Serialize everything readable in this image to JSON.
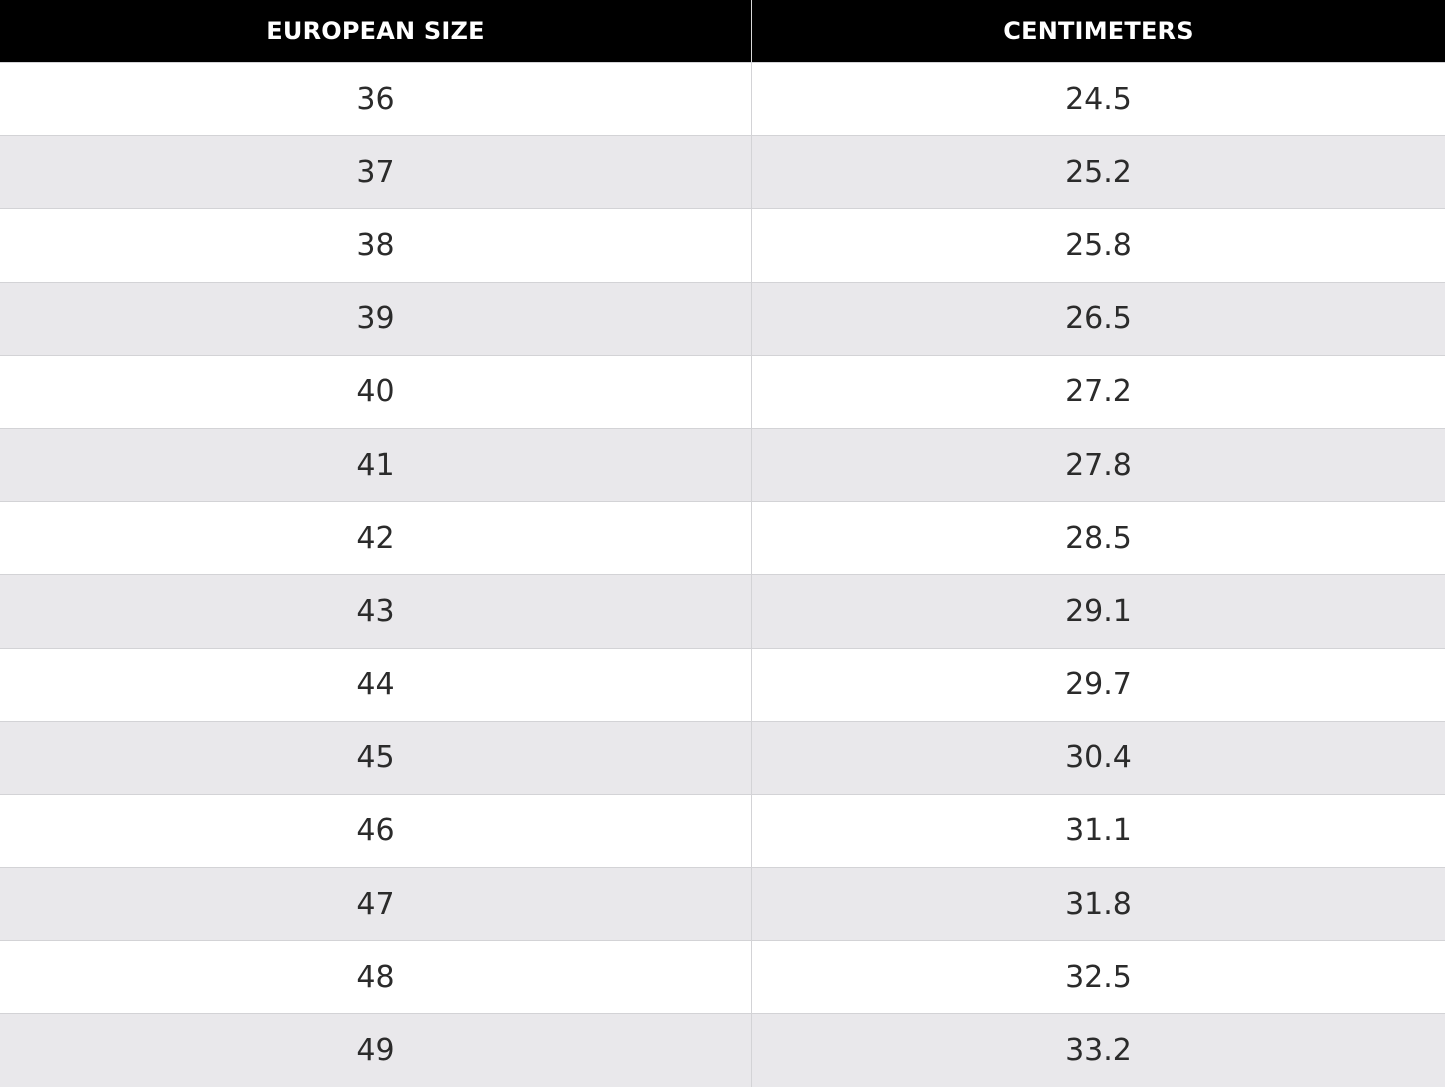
{
  "table": {
    "header": [
      "EUROPEAN SIZE",
      "CENTIMETERS"
    ],
    "rows": [
      [
        36,
        24.5
      ],
      [
        37,
        25.2
      ],
      [
        38,
        25.8
      ],
      [
        39,
        26.5
      ],
      [
        40,
        27.2
      ],
      [
        41,
        27.8
      ],
      [
        42,
        28.5
      ],
      [
        43,
        29.1
      ],
      [
        44,
        29.7
      ],
      [
        45,
        30.4
      ],
      [
        46,
        31.1
      ],
      [
        47,
        31.8
      ],
      [
        48,
        32.5
      ],
      [
        49,
        33.2
      ]
    ]
  }
}
